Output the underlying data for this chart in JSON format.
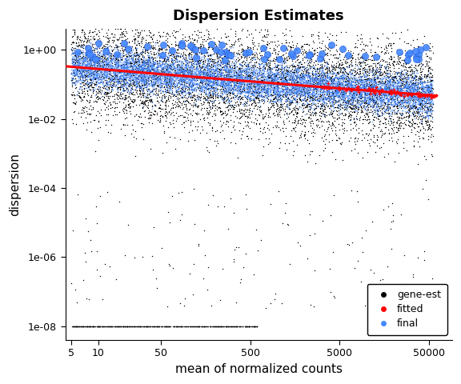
{
  "title": "Dispersion Estimates",
  "xlabel": "mean of normalized counts",
  "ylabel": "dispersion",
  "x_ticks": [
    5,
    10,
    50,
    500,
    5000,
    50000
  ],
  "x_tick_labels": [
    "5",
    "10",
    "50",
    "500",
    "5000",
    "50000"
  ],
  "y_ticks": [
    1e-08,
    1e-06,
    0.0001,
    0.01,
    1.0
  ],
  "y_tick_labels": [
    "1e-08",
    "1e-06",
    "1e-04",
    "1e-02",
    "1e+00"
  ],
  "color_black": "#000000",
  "color_blue": "#4488ff",
  "color_red": "#ff0000",
  "color_bg": "#ffffff",
  "n_points": 8000,
  "n_floor": 500,
  "n_big_blue": 60,
  "seed": 12345
}
